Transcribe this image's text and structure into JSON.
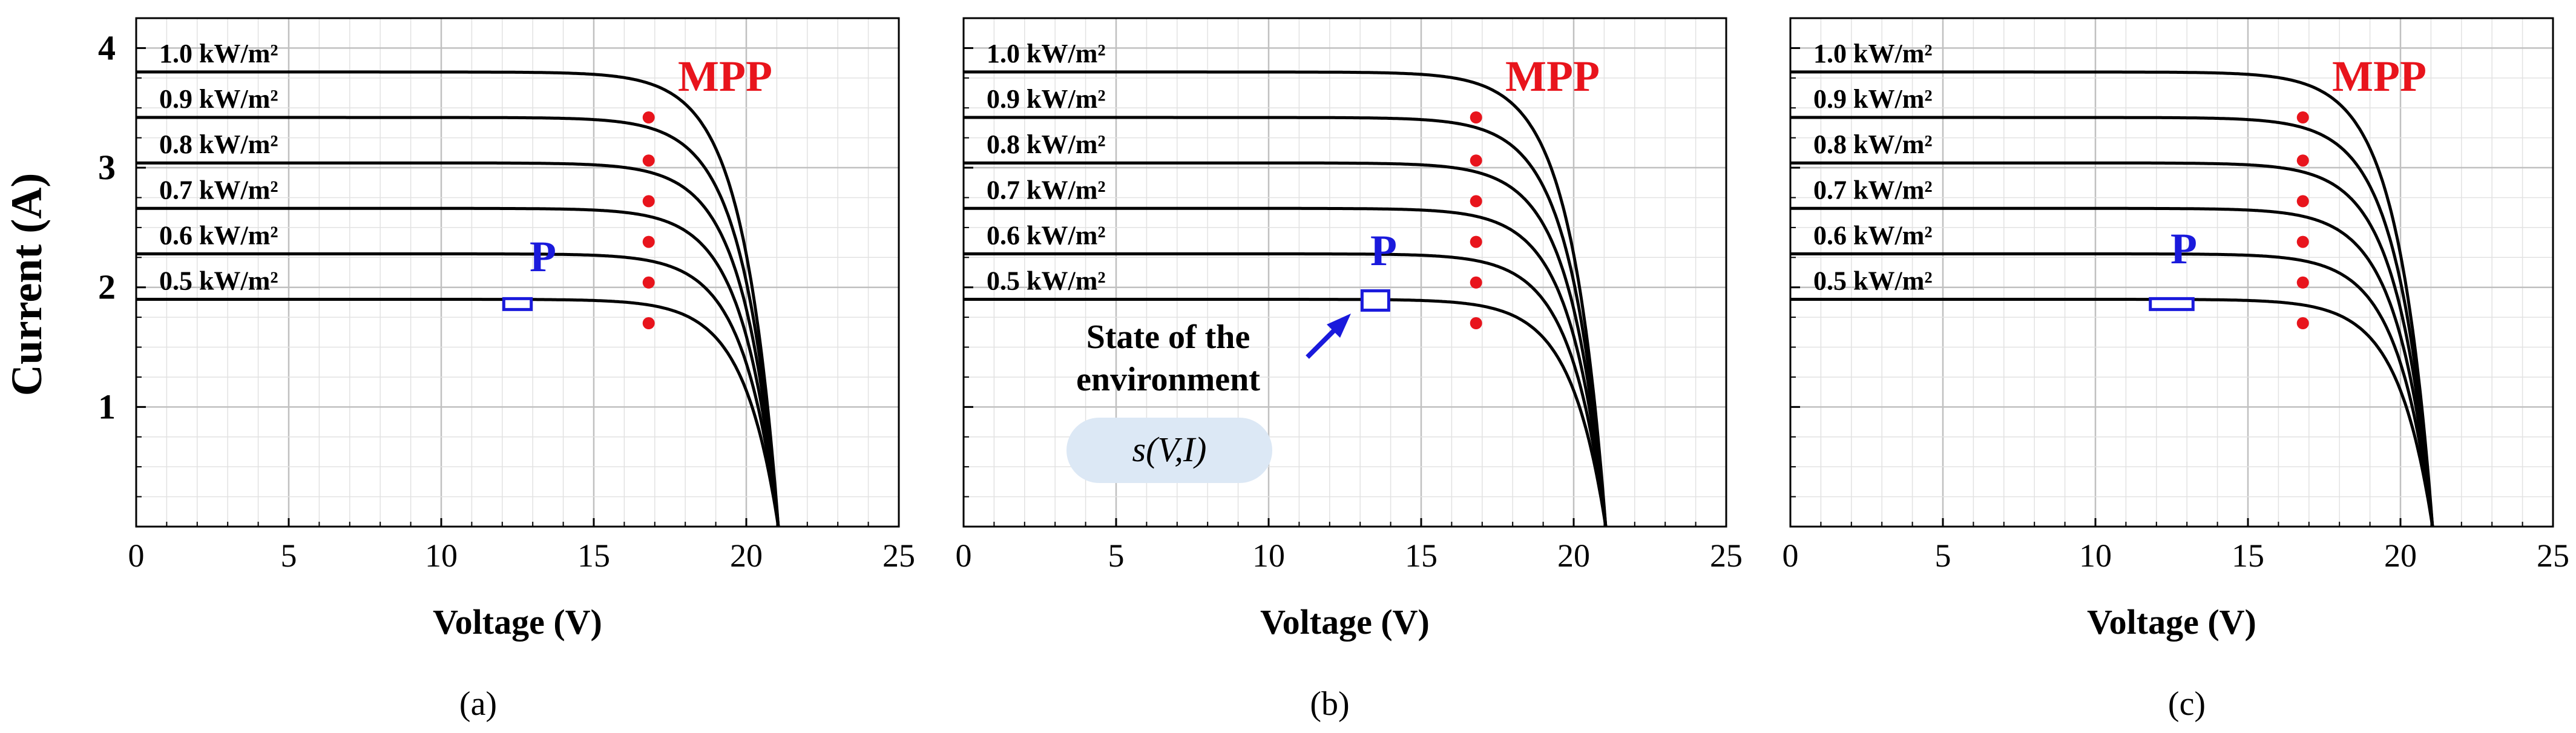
{
  "chart_data": [
    {
      "type": "line",
      "panel": "a",
      "caption": "(a)",
      "ylabel": "Current (A)",
      "xlabel": "Voltage (V)",
      "xlim": [
        0,
        25
      ],
      "ylim": [
        0,
        4.25
      ],
      "xticks": [
        "0",
        "5",
        "10",
        "15",
        "20",
        "25"
      ],
      "yticks": [
        "1",
        "2",
        "3",
        "4"
      ],
      "grid": true,
      "series": [
        {
          "name": "1.0 kW/m²",
          "isc": 3.8,
          "mpp": [
            16.8,
            3.42
          ]
        },
        {
          "name": "0.9 kW/m²",
          "isc": 3.42,
          "mpp": [
            16.8,
            3.06
          ]
        },
        {
          "name": "0.8 kW/m²",
          "isc": 3.04,
          "mpp": [
            16.8,
            2.72
          ]
        },
        {
          "name": "0.7 kW/m²",
          "isc": 2.66,
          "mpp": [
            16.8,
            2.38
          ]
        },
        {
          "name": "0.6 kW/m²",
          "isc": 2.28,
          "mpp": [
            16.8,
            2.04
          ]
        },
        {
          "name": "0.5 kW/m²",
          "isc": 1.9,
          "mpp": [
            16.8,
            1.7
          ]
        }
      ],
      "mpp_label": "MPP",
      "point_label": "P",
      "point": {
        "v": 12.5,
        "i": 1.86,
        "box_width_v": 0.9
      }
    },
    {
      "type": "line",
      "panel": "b",
      "caption": "(b)",
      "xlabel": "Voltage (V)",
      "xlim": [
        0,
        25
      ],
      "ylim": [
        0,
        4.25
      ],
      "xticks": [
        "0",
        "5",
        "10",
        "15",
        "20",
        "25"
      ],
      "grid": true,
      "series": [
        {
          "name": "1.0 kW/m²",
          "isc": 3.8,
          "mpp": [
            16.8,
            3.42
          ]
        },
        {
          "name": "0.9 kW/m²",
          "isc": 3.42,
          "mpp": [
            16.8,
            3.06
          ]
        },
        {
          "name": "0.8 kW/m²",
          "isc": 3.04,
          "mpp": [
            16.8,
            2.72
          ]
        },
        {
          "name": "0.7 kW/m²",
          "isc": 2.66,
          "mpp": [
            16.8,
            2.38
          ]
        },
        {
          "name": "0.6 kW/m²",
          "isc": 2.28,
          "mpp": [
            16.8,
            2.04
          ]
        },
        {
          "name": "0.5 kW/m²",
          "isc": 1.9,
          "mpp": [
            16.8,
            1.7
          ]
        }
      ],
      "mpp_label": "MPP",
      "point_label": "P",
      "point": {
        "v": 13.5,
        "i": 1.89,
        "box_width_v": 0.9
      },
      "annotation": {
        "line1": "State of the",
        "line2": "environment",
        "formula": "s(V,I)"
      }
    },
    {
      "type": "line",
      "panel": "c",
      "caption": "(c)",
      "xlabel": "Voltage (V)",
      "xlim": [
        0,
        25
      ],
      "ylim": [
        0,
        4.25
      ],
      "xticks": [
        "0",
        "5",
        "10",
        "15",
        "20",
        "25"
      ],
      "grid": true,
      "series": [
        {
          "name": "1.0 kW/m²",
          "isc": 3.8,
          "mpp": [
            16.8,
            3.42
          ]
        },
        {
          "name": "0.9 kW/m²",
          "isc": 3.42,
          "mpp": [
            16.8,
            3.06
          ]
        },
        {
          "name": "0.8 kW/m²",
          "isc": 3.04,
          "mpp": [
            16.8,
            2.72
          ]
        },
        {
          "name": "0.7 kW/m²",
          "isc": 2.66,
          "mpp": [
            16.8,
            2.38
          ]
        },
        {
          "name": "0.6 kW/m²",
          "isc": 2.28,
          "mpp": [
            16.8,
            2.04
          ]
        },
        {
          "name": "0.5 kW/m²",
          "isc": 1.9,
          "mpp": [
            16.8,
            1.7
          ]
        }
      ],
      "mpp_label": "MPP",
      "point_label": "P",
      "point": {
        "v": 12.5,
        "i": 1.86,
        "box_width_v": 1.4
      }
    }
  ],
  "colors": {
    "curve": "#000000",
    "mpp": "#e8141c",
    "point": "#1a1adc",
    "grid_major": "#c0c0c0",
    "grid_minor": "#e2e2e2",
    "bubble": "#dce8f5"
  }
}
